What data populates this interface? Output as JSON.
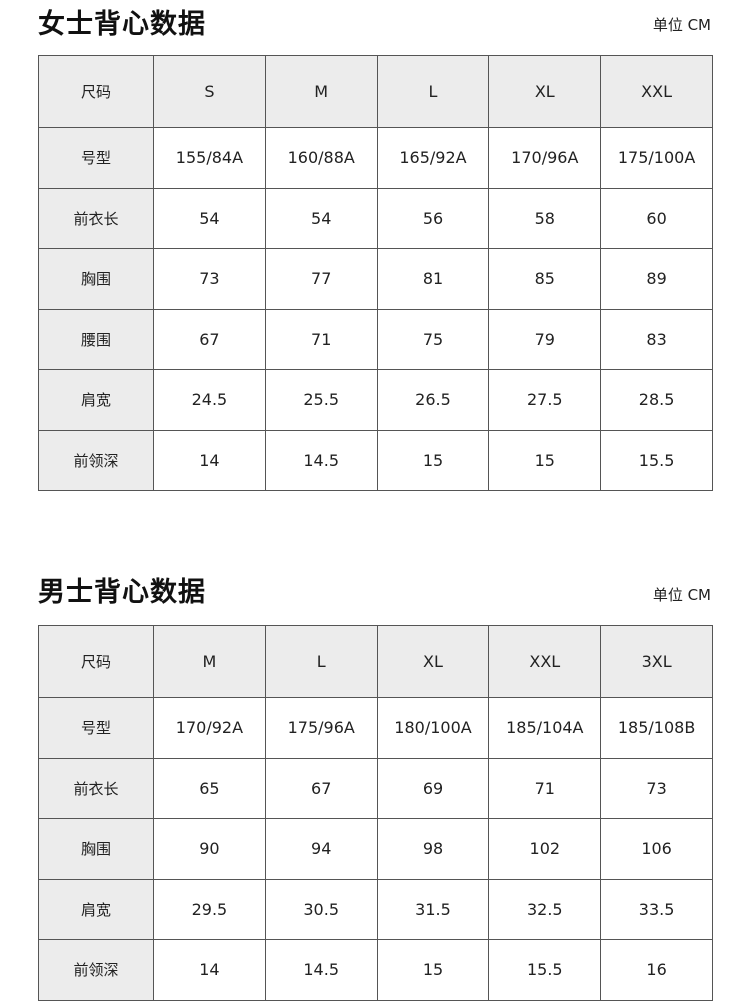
{
  "colors": {
    "header_bg": "#ececec",
    "border": "#555555",
    "text": "#222222"
  },
  "sections": [
    {
      "title": "女士背心数据",
      "unit": "单位 CM",
      "headers": [
        "尺码",
        "S",
        "M",
        "L",
        "XL",
        "XXL"
      ],
      "rows": [
        [
          "号型",
          "155/84A",
          "160/88A",
          "165/92A",
          "170/96A",
          "175/100A"
        ],
        [
          "前衣长",
          "54",
          "54",
          "56",
          "58",
          "60"
        ],
        [
          "胸围",
          "73",
          "77",
          "81",
          "85",
          "89"
        ],
        [
          "腰围",
          "67",
          "71",
          "75",
          "79",
          "83"
        ],
        [
          "肩宽",
          "24.5",
          "25.5",
          "26.5",
          "27.5",
          "28.5"
        ],
        [
          "前领深",
          "14",
          "14.5",
          "15",
          "15",
          "15.5"
        ]
      ]
    },
    {
      "title": "男士背心数据",
      "unit": "单位 CM",
      "headers": [
        "尺码",
        "M",
        "L",
        "XL",
        "XXL",
        "3XL"
      ],
      "rows": [
        [
          "号型",
          "170/92A",
          "175/96A",
          "180/100A",
          "185/104A",
          "185/108B"
        ],
        [
          "前衣长",
          "65",
          "67",
          "69",
          "71",
          "73"
        ],
        [
          "胸围",
          "90",
          "94",
          "98",
          "102",
          "106"
        ],
        [
          "肩宽",
          "29.5",
          "30.5",
          "31.5",
          "32.5",
          "33.5"
        ],
        [
          "前领深",
          "14",
          "14.5",
          "15",
          "15.5",
          "16"
        ]
      ]
    }
  ]
}
